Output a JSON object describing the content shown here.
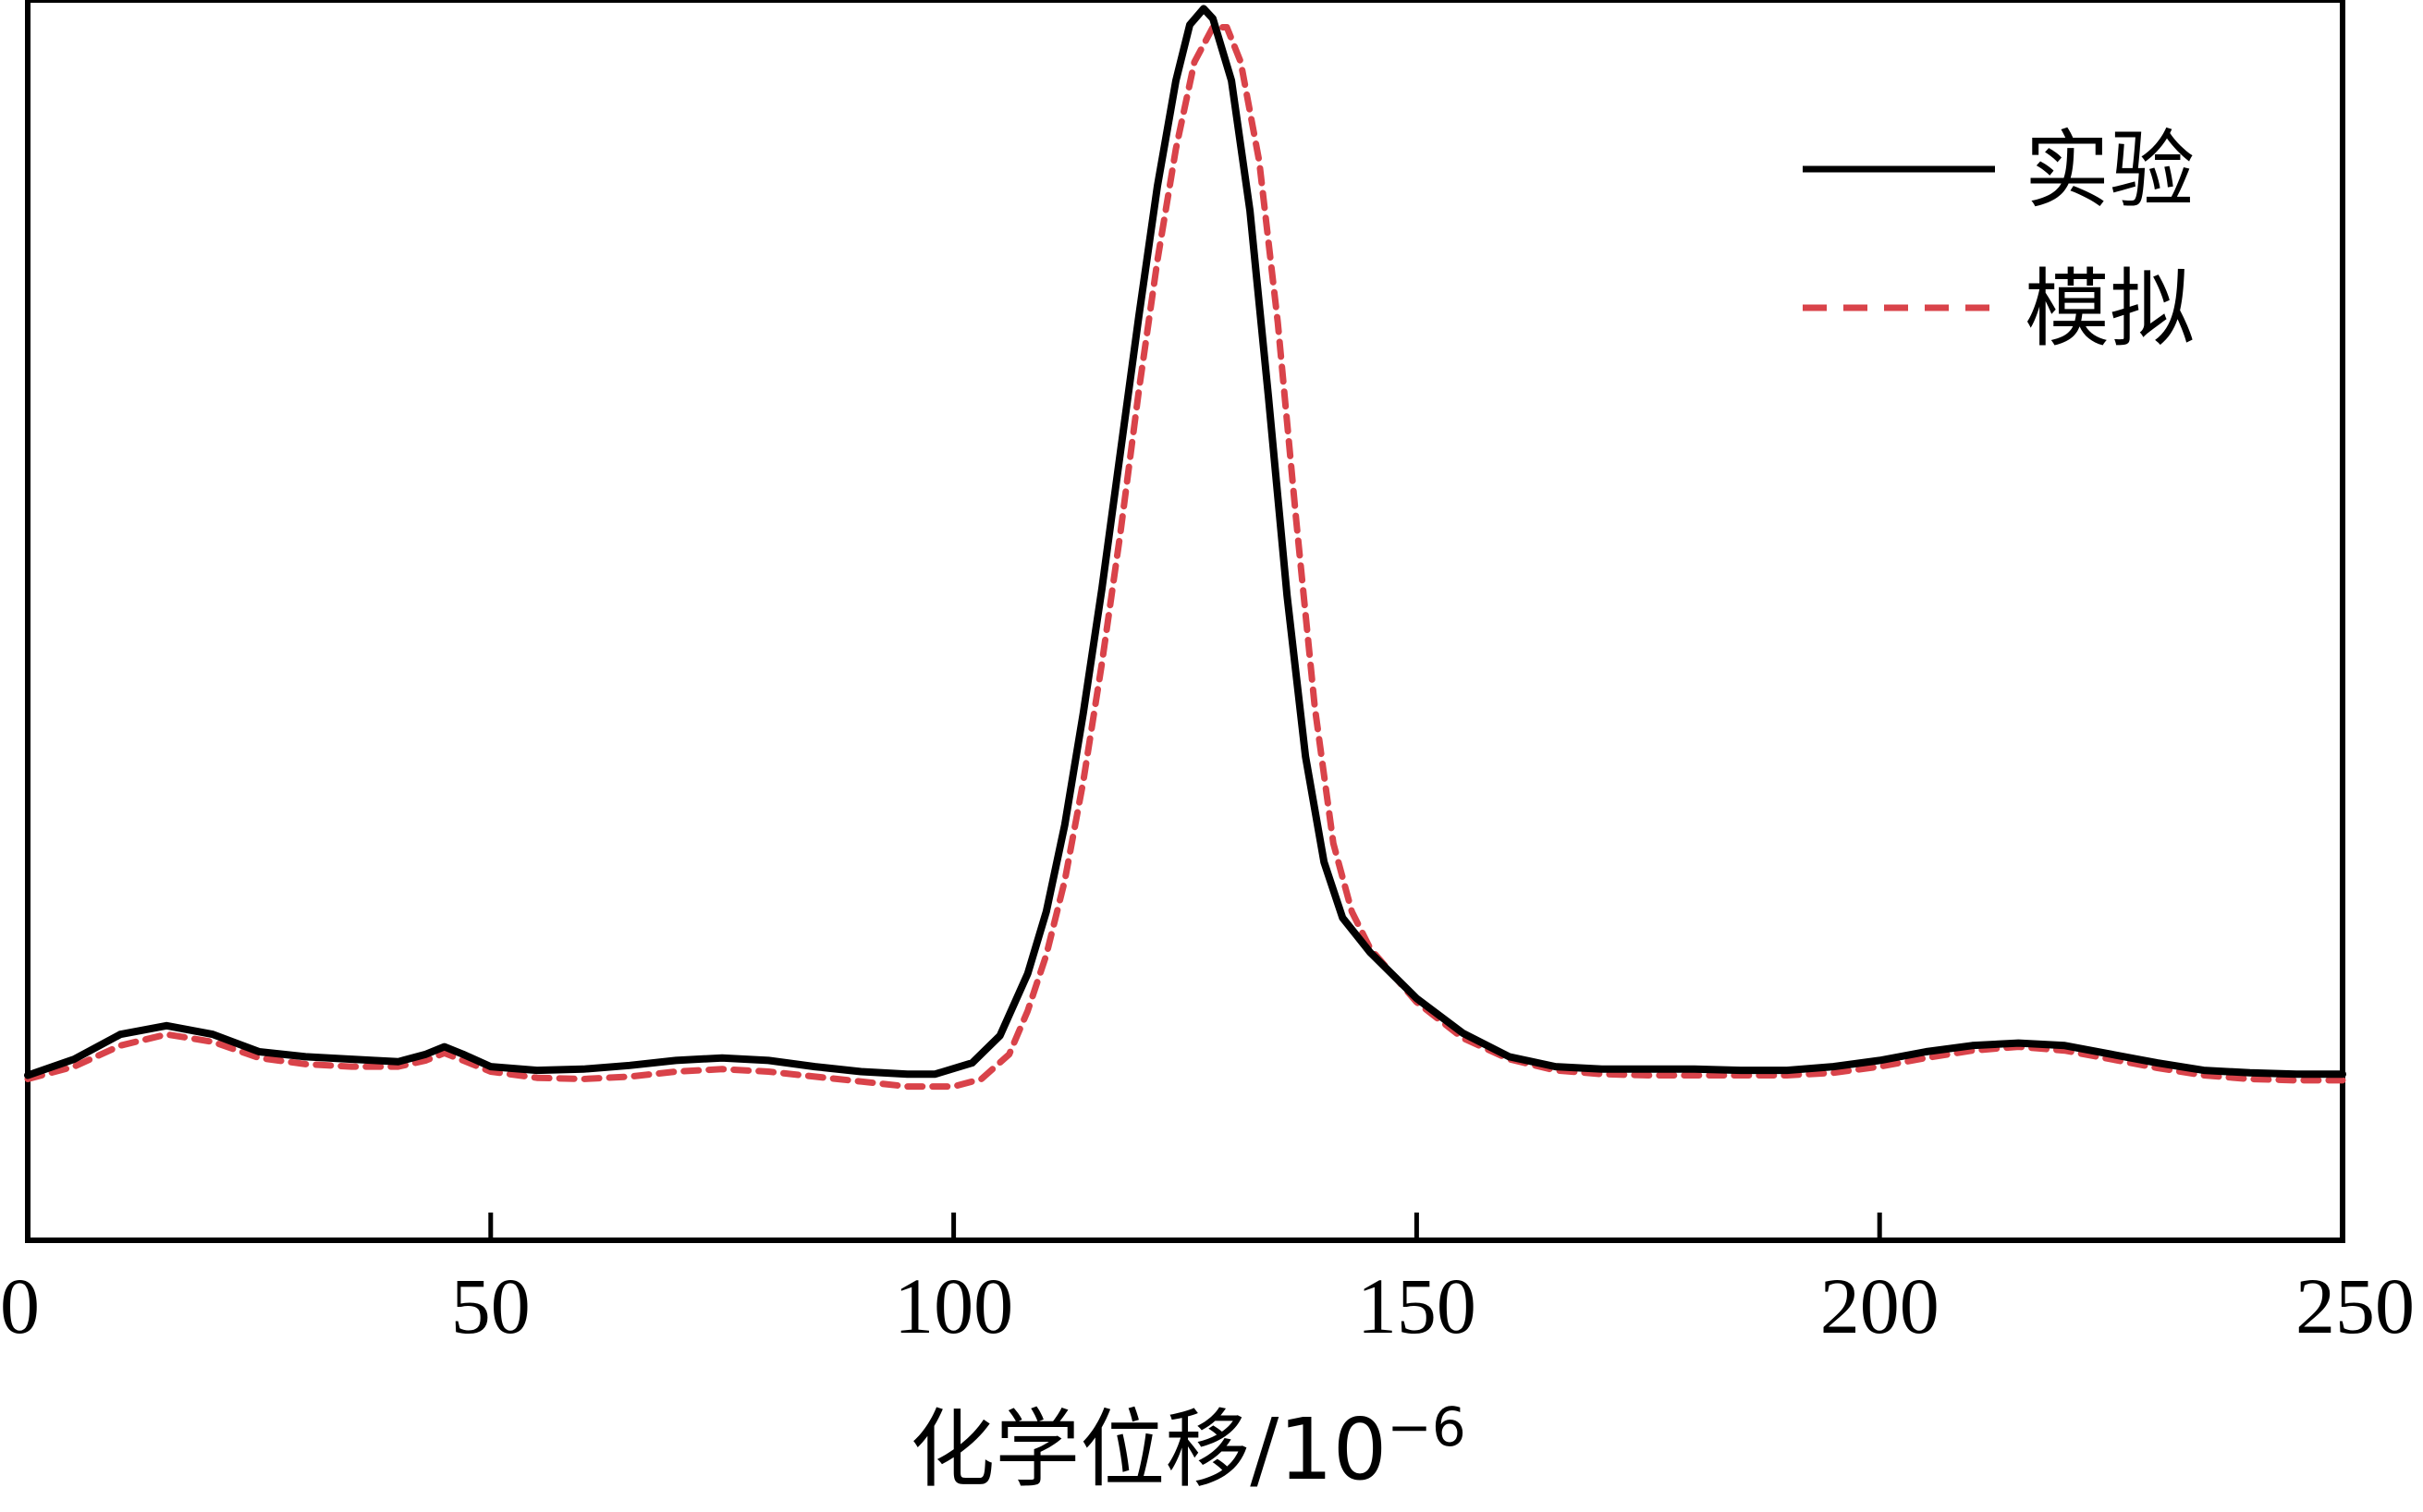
{
  "chart_data": {
    "type": "line",
    "title": "",
    "xlabel": "化学位移/10",
    "xlabel_superscript": "−6",
    "ylabel": "",
    "xlim": [
      0,
      250
    ],
    "ylim": [
      0,
      1.0
    ],
    "xticks": [
      "0",
      "50",
      "100",
      "150",
      "200",
      "250"
    ],
    "grid": false,
    "legend_position": "top-right",
    "series": [
      {
        "name": "实验",
        "color": "#000000",
        "style": "solid",
        "points": [
          [
            0,
            0.133
          ],
          [
            5,
            0.146
          ],
          [
            10,
            0.166
          ],
          [
            15,
            0.173
          ],
          [
            20,
            0.166
          ],
          [
            25,
            0.152
          ],
          [
            30,
            0.148
          ],
          [
            35,
            0.146
          ],
          [
            40,
            0.144
          ],
          [
            43,
            0.15
          ],
          [
            45,
            0.156
          ],
          [
            47,
            0.15
          ],
          [
            50,
            0.14
          ],
          [
            55,
            0.137
          ],
          [
            60,
            0.138
          ],
          [
            65,
            0.141
          ],
          [
            70,
            0.145
          ],
          [
            75,
            0.147
          ],
          [
            80,
            0.145
          ],
          [
            85,
            0.14
          ],
          [
            90,
            0.136
          ],
          [
            95,
            0.134
          ],
          [
            98,
            0.134
          ],
          [
            102,
            0.143
          ],
          [
            105,
            0.165
          ],
          [
            108,
            0.215
          ],
          [
            110,
            0.265
          ],
          [
            112,
            0.335
          ],
          [
            114,
            0.425
          ],
          [
            116,
            0.525
          ],
          [
            118,
            0.635
          ],
          [
            120,
            0.745
          ],
          [
            122,
            0.85
          ],
          [
            124,
            0.935
          ],
          [
            125.5,
            0.98
          ],
          [
            127,
            0.993
          ],
          [
            128,
            0.985
          ],
          [
            130,
            0.935
          ],
          [
            132,
            0.83
          ],
          [
            134,
            0.68
          ],
          [
            136,
            0.52
          ],
          [
            138,
            0.39
          ],
          [
            140,
            0.305
          ],
          [
            142,
            0.26
          ],
          [
            145,
            0.232
          ],
          [
            150,
            0.195
          ],
          [
            155,
            0.167
          ],
          [
            160,
            0.148
          ],
          [
            165,
            0.14
          ],
          [
            170,
            0.138
          ],
          [
            175,
            0.138
          ],
          [
            180,
            0.138
          ],
          [
            185,
            0.137
          ],
          [
            190,
            0.137
          ],
          [
            195,
            0.14
          ],
          [
            200,
            0.145
          ],
          [
            205,
            0.152
          ],
          [
            210,
            0.157
          ],
          [
            215,
            0.159
          ],
          [
            220,
            0.157
          ],
          [
            225,
            0.15
          ],
          [
            230,
            0.143
          ],
          [
            235,
            0.137
          ],
          [
            240,
            0.135
          ],
          [
            245,
            0.134
          ],
          [
            250,
            0.134
          ]
        ]
      },
      {
        "name": "模拟",
        "color": "#d9434a",
        "style": "dashed",
        "points": [
          [
            0,
            0.13
          ],
          [
            5,
            0.14
          ],
          [
            10,
            0.157
          ],
          [
            15,
            0.166
          ],
          [
            20,
            0.16
          ],
          [
            25,
            0.147
          ],
          [
            30,
            0.142
          ],
          [
            35,
            0.14
          ],
          [
            40,
            0.14
          ],
          [
            43,
            0.145
          ],
          [
            45,
            0.151
          ],
          [
            47,
            0.145
          ],
          [
            50,
            0.136
          ],
          [
            55,
            0.131
          ],
          [
            60,
            0.13
          ],
          [
            65,
            0.132
          ],
          [
            70,
            0.136
          ],
          [
            75,
            0.138
          ],
          [
            80,
            0.136
          ],
          [
            85,
            0.132
          ],
          [
            90,
            0.128
          ],
          [
            95,
            0.124
          ],
          [
            100,
            0.124
          ],
          [
            103,
            0.13
          ],
          [
            106,
            0.15
          ],
          [
            108,
            0.185
          ],
          [
            110,
            0.23
          ],
          [
            112,
            0.29
          ],
          [
            114,
            0.37
          ],
          [
            116,
            0.465
          ],
          [
            118,
            0.57
          ],
          [
            120,
            0.685
          ],
          [
            122,
            0.79
          ],
          [
            124,
            0.88
          ],
          [
            126,
            0.95
          ],
          [
            128,
            0.978
          ],
          [
            129.5,
            0.978
          ],
          [
            131,
            0.95
          ],
          [
            133,
            0.87
          ],
          [
            135,
            0.74
          ],
          [
            137,
            0.58
          ],
          [
            139,
            0.43
          ],
          [
            141,
            0.32
          ],
          [
            143,
            0.265
          ],
          [
            145,
            0.235
          ],
          [
            150,
            0.192
          ],
          [
            155,
            0.163
          ],
          [
            160,
            0.146
          ],
          [
            165,
            0.137
          ],
          [
            170,
            0.134
          ],
          [
            175,
            0.133
          ],
          [
            180,
            0.133
          ],
          [
            185,
            0.133
          ],
          [
            190,
            0.133
          ],
          [
            195,
            0.135
          ],
          [
            200,
            0.14
          ],
          [
            205,
            0.147
          ],
          [
            210,
            0.153
          ],
          [
            215,
            0.156
          ],
          [
            220,
            0.153
          ],
          [
            225,
            0.146
          ],
          [
            230,
            0.139
          ],
          [
            235,
            0.133
          ],
          [
            240,
            0.13
          ],
          [
            245,
            0.129
          ],
          [
            250,
            0.129
          ]
        ]
      }
    ]
  }
}
